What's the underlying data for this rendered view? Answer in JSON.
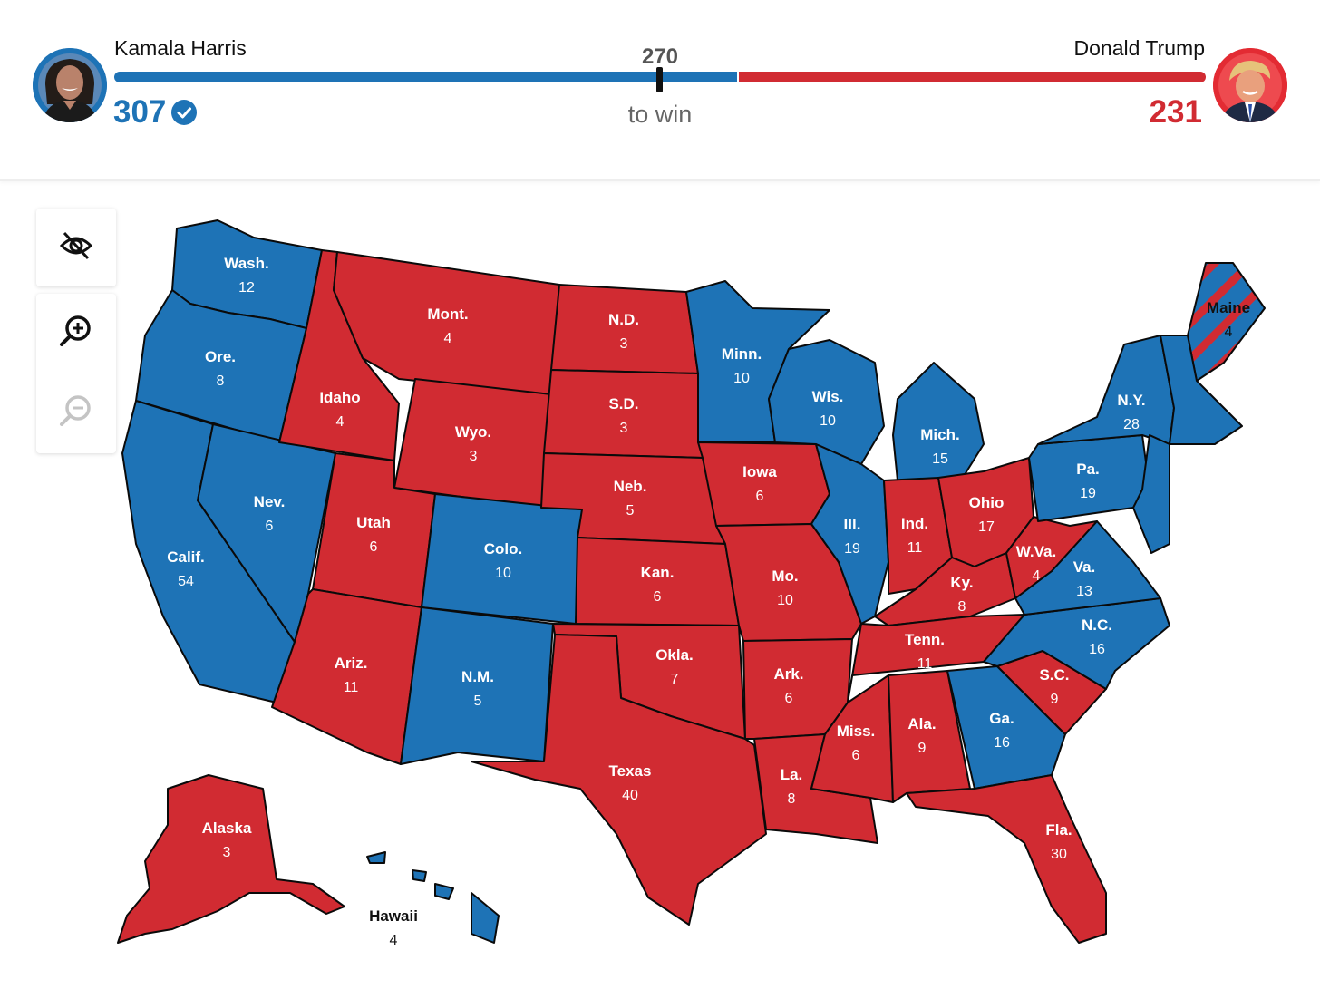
{
  "header": {
    "left_candidate": {
      "name": "Kamala Harris",
      "votes": "307",
      "color": "#1e73b6",
      "winner": true
    },
    "right_candidate": {
      "name": "Donald Trump",
      "votes": "231",
      "color": "#d12b32"
    },
    "threshold": "270",
    "threshold_label": "to win"
  },
  "controls": {
    "toggle_labels_icon": "eye-off-icon",
    "zoom_in_icon": "zoom-in-icon",
    "zoom_out_icon": "zoom-out-icon"
  },
  "colors": {
    "dem": "#1e73b6",
    "rep": "#d12b32"
  },
  "states": [
    {
      "id": "wa",
      "name": "Wash.",
      "ev": "12",
      "party": "dem"
    },
    {
      "id": "or",
      "name": "Ore.",
      "ev": "8",
      "party": "dem"
    },
    {
      "id": "ca",
      "name": "Calif.",
      "ev": "54",
      "party": "dem"
    },
    {
      "id": "nv",
      "name": "Nev.",
      "ev": "6",
      "party": "dem"
    },
    {
      "id": "id",
      "name": "Idaho",
      "ev": "4",
      "party": "rep"
    },
    {
      "id": "mt",
      "name": "Mont.",
      "ev": "4",
      "party": "rep"
    },
    {
      "id": "wy",
      "name": "Wyo.",
      "ev": "3",
      "party": "rep"
    },
    {
      "id": "ut",
      "name": "Utah",
      "ev": "6",
      "party": "rep"
    },
    {
      "id": "az",
      "name": "Ariz.",
      "ev": "11",
      "party": "rep"
    },
    {
      "id": "co",
      "name": "Colo.",
      "ev": "10",
      "party": "dem"
    },
    {
      "id": "nm",
      "name": "N.M.",
      "ev": "5",
      "party": "dem"
    },
    {
      "id": "nd",
      "name": "N.D.",
      "ev": "3",
      "party": "rep"
    },
    {
      "id": "sd",
      "name": "S.D.",
      "ev": "3",
      "party": "rep"
    },
    {
      "id": "ne",
      "name": "Neb.",
      "ev": "5",
      "party": "rep"
    },
    {
      "id": "ks",
      "name": "Kan.",
      "ev": "6",
      "party": "rep"
    },
    {
      "id": "ok",
      "name": "Okla.",
      "ev": "7",
      "party": "rep"
    },
    {
      "id": "tx",
      "name": "Texas",
      "ev": "40",
      "party": "rep"
    },
    {
      "id": "mn",
      "name": "Minn.",
      "ev": "10",
      "party": "dem"
    },
    {
      "id": "ia",
      "name": "Iowa",
      "ev": "6",
      "party": "rep"
    },
    {
      "id": "mo",
      "name": "Mo.",
      "ev": "10",
      "party": "rep"
    },
    {
      "id": "ar",
      "name": "Ark.",
      "ev": "6",
      "party": "rep"
    },
    {
      "id": "la",
      "name": "La.",
      "ev": "8",
      "party": "rep"
    },
    {
      "id": "wi",
      "name": "Wis.",
      "ev": "10",
      "party": "dem"
    },
    {
      "id": "il",
      "name": "Ill.",
      "ev": "19",
      "party": "dem"
    },
    {
      "id": "mi",
      "name": "Mich.",
      "ev": "15",
      "party": "dem"
    },
    {
      "id": "in",
      "name": "Ind.",
      "ev": "11",
      "party": "rep"
    },
    {
      "id": "oh",
      "name": "Ohio",
      "ev": "17",
      "party": "rep"
    },
    {
      "id": "ky",
      "name": "Ky.",
      "ev": "8",
      "party": "rep"
    },
    {
      "id": "tn",
      "name": "Tenn.",
      "ev": "11",
      "party": "rep"
    },
    {
      "id": "ms",
      "name": "Miss.",
      "ev": "6",
      "party": "rep"
    },
    {
      "id": "al",
      "name": "Ala.",
      "ev": "9",
      "party": "rep"
    },
    {
      "id": "ga",
      "name": "Ga.",
      "ev": "16",
      "party": "dem"
    },
    {
      "id": "fl",
      "name": "Fla.",
      "ev": "30",
      "party": "rep"
    },
    {
      "id": "sc",
      "name": "S.C.",
      "ev": "9",
      "party": "rep"
    },
    {
      "id": "nc",
      "name": "N.C.",
      "ev": "16",
      "party": "dem"
    },
    {
      "id": "va",
      "name": "Va.",
      "ev": "13",
      "party": "dem"
    },
    {
      "id": "wv",
      "name": "W.Va.",
      "ev": "4",
      "party": "rep"
    },
    {
      "id": "pa",
      "name": "Pa.",
      "ev": "19",
      "party": "dem"
    },
    {
      "id": "ny",
      "name": "N.Y.",
      "ev": "28",
      "party": "dem"
    },
    {
      "id": "me",
      "name": "Maine",
      "ev": "4",
      "party": "split"
    },
    {
      "id": "ak",
      "name": "Alaska",
      "ev": "3",
      "party": "rep"
    },
    {
      "id": "hi",
      "name": "Hawaii",
      "ev": "4",
      "party": "dem"
    }
  ]
}
